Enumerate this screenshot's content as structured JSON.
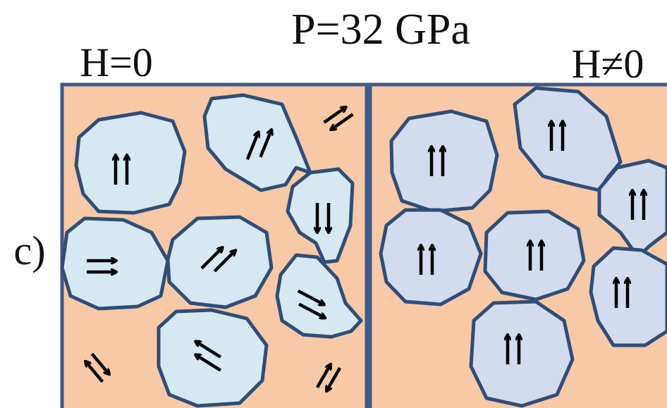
{
  "title": "P=32 GPa",
  "panels": [
    {
      "label": "H=0"
    },
    {
      "label": "H≠0"
    }
  ],
  "figure_label": "c)"
}
